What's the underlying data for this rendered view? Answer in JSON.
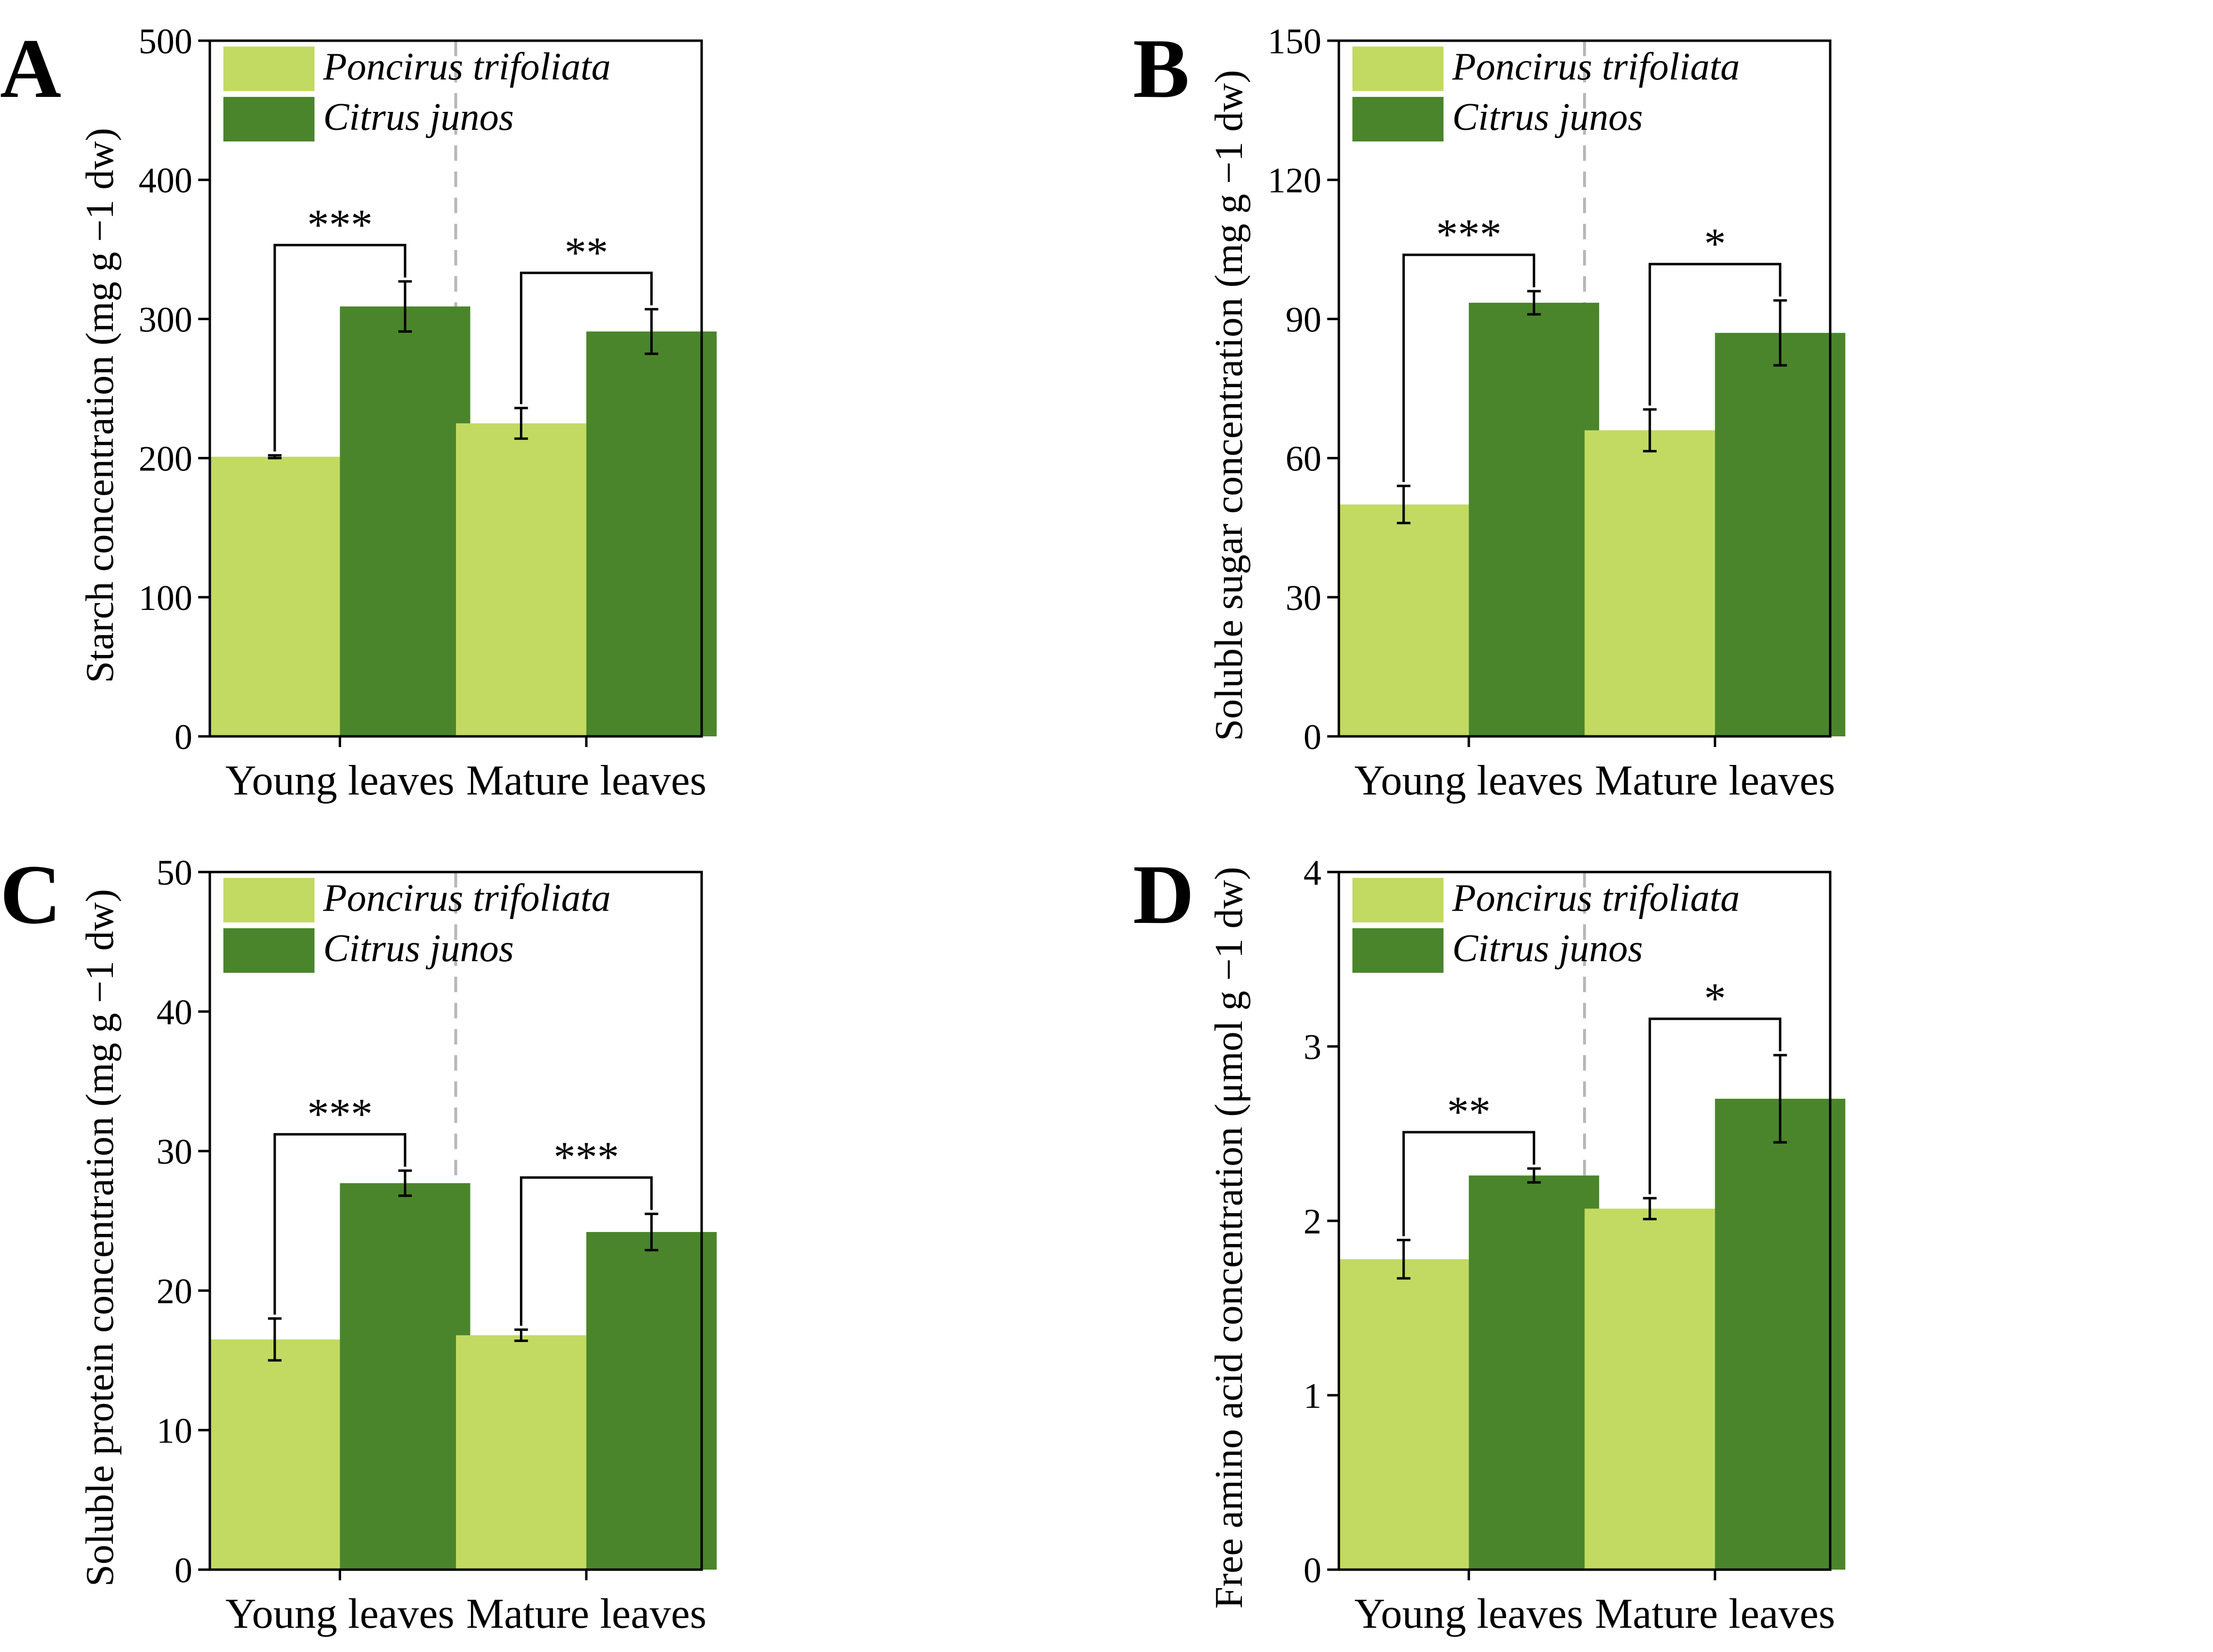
{
  "colors": {
    "poncirus": "#c2da61",
    "citrus": "#4a852b",
    "axis": "#000000",
    "divider": "#b8b8b8"
  },
  "chart_data": [
    {
      "panel": "A",
      "type": "bar",
      "title": "",
      "xlabel": "",
      "ylabel": "Starch concentration (mg g −1 dw)",
      "ylim": [
        0,
        500
      ],
      "yticks": [
        0,
        100,
        200,
        300,
        400,
        500
      ],
      "categories": [
        "Young leaves",
        "Mature leaves"
      ],
      "series": [
        {
          "name": "Poncirus trifoliata",
          "values": [
            201,
            225
          ],
          "errors": [
            1,
            11
          ]
        },
        {
          "name": "Citrus junos",
          "values": [
            309,
            291
          ],
          "errors": [
            18,
            16
          ]
        }
      ],
      "significance": [
        "***",
        "**"
      ],
      "legend_position": "top-left"
    },
    {
      "panel": "B",
      "type": "bar",
      "title": "",
      "xlabel": "",
      "ylabel": "Soluble sugar concentration (mg g −1 dw)",
      "ylim": [
        0,
        150
      ],
      "yticks": [
        0,
        30,
        60,
        90,
        120,
        150
      ],
      "categories": [
        "Young leaves",
        "Mature leaves"
      ],
      "series": [
        {
          "name": "Poncirus trifoliata",
          "values": [
            50,
            66
          ],
          "errors": [
            4,
            4.5
          ]
        },
        {
          "name": "Citrus junos",
          "values": [
            93.5,
            87
          ],
          "errors": [
            2.5,
            7
          ]
        }
      ],
      "significance": [
        "***",
        "*"
      ],
      "legend_position": "top-left"
    },
    {
      "panel": "C",
      "type": "bar",
      "title": "",
      "xlabel": "",
      "ylabel": "Soluble protein concentration (mg g −1 dw)",
      "ylim": [
        0,
        50
      ],
      "yticks": [
        0,
        10,
        20,
        30,
        40,
        50
      ],
      "categories": [
        "Young leaves",
        "Mature leaves"
      ],
      "series": [
        {
          "name": "Poncirus trifoliata",
          "values": [
            16.5,
            16.8
          ],
          "errors": [
            1.5,
            0.4
          ]
        },
        {
          "name": "Citrus junos",
          "values": [
            27.7,
            24.2
          ],
          "errors": [
            0.9,
            1.3
          ]
        }
      ],
      "significance": [
        "***",
        "***"
      ],
      "legend_position": "top-left"
    },
    {
      "panel": "D",
      "type": "bar",
      "title": "",
      "xlabel": "",
      "ylabel": "Free amino acid concentration (μmol g −1 dw)",
      "ylim": [
        0,
        4
      ],
      "yticks": [
        0,
        1,
        2,
        3,
        4
      ],
      "categories": [
        "Young leaves",
        "Mature leaves"
      ],
      "series": [
        {
          "name": "Poncirus trifoliata",
          "values": [
            1.78,
            2.07
          ],
          "errors": [
            0.11,
            0.06
          ]
        },
        {
          "name": "Citrus junos",
          "values": [
            2.26,
            2.7
          ],
          "errors": [
            0.04,
            0.25
          ]
        }
      ],
      "significance": [
        "**",
        "*"
      ],
      "legend_position": "top-left"
    }
  ]
}
